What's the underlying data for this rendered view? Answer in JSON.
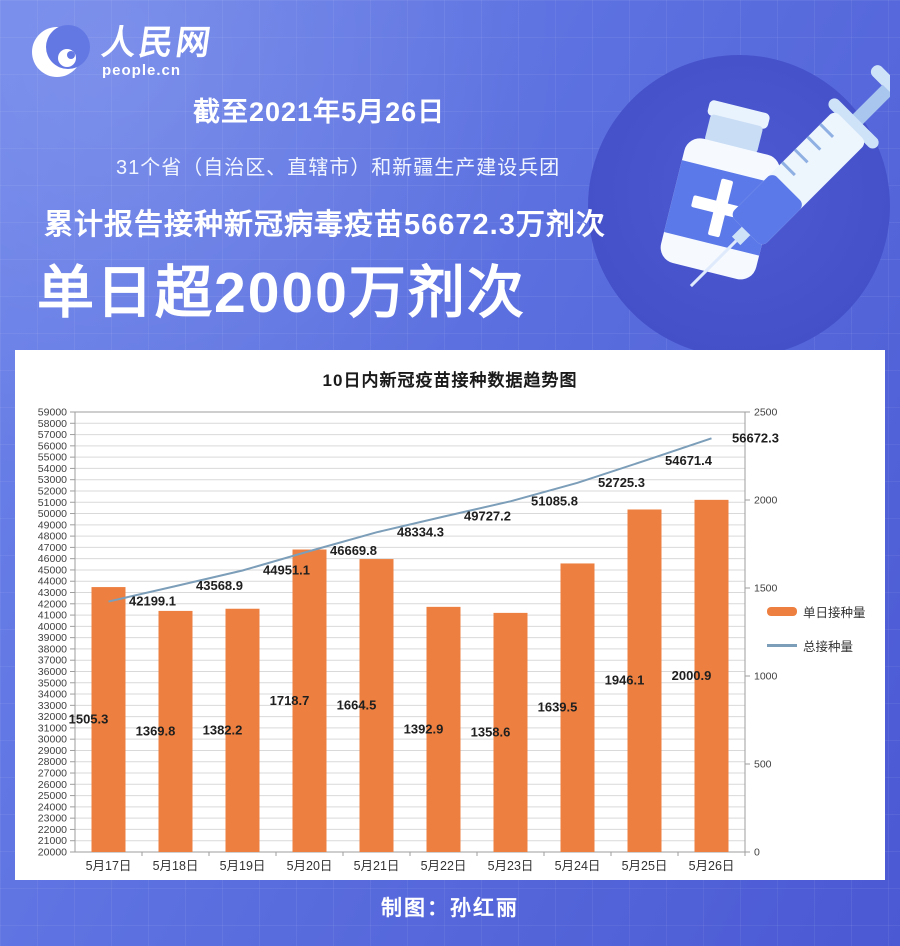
{
  "header": {
    "logo": {
      "cn": "人民网",
      "en": "people.cn"
    },
    "date_line": "截至2021年5月26日",
    "scope_line": "31个省（自治区、直辖市）和新疆生产建设兵团",
    "total_line": "累计报告接种新冠病毒疫苗56672.3万剂次",
    "headline": "单日超2000万剂次"
  },
  "illustration": {
    "name": "vaccine-vial-and-syringe"
  },
  "chart_data": {
    "type": "bar",
    "combo": "bar+line",
    "title": "10日内新冠疫苗接种数据趋势图",
    "categories": [
      "5月17日",
      "5月18日",
      "5月19日",
      "5月20日",
      "5月21日",
      "5月22日",
      "5月23日",
      "5月24日",
      "5月25日",
      "5月26日"
    ],
    "series": [
      {
        "name": "单日接种量",
        "type": "bar",
        "axis": "right",
        "color": "#ED8040",
        "values": [
          1505.3,
          1369.8,
          1382.2,
          1718.7,
          1664.5,
          1392.9,
          1358.6,
          1639.5,
          1946.1,
          2000.9
        ]
      },
      {
        "name": "总接种量",
        "type": "line",
        "axis": "left",
        "color": "#7C9EB9",
        "values": [
          42199.1,
          43568.9,
          44951.1,
          46669.8,
          48334.3,
          49727.2,
          51085.8,
          52725.3,
          54671.4,
          56672.3
        ]
      }
    ],
    "left_axis": {
      "min": 20000,
      "max": 59000,
      "step": 1000
    },
    "right_axis": {
      "min": 0,
      "max": 2500,
      "step": 500
    },
    "grid": true,
    "legend_position": "right"
  },
  "footer": {
    "credit": "制图：孙红丽"
  }
}
